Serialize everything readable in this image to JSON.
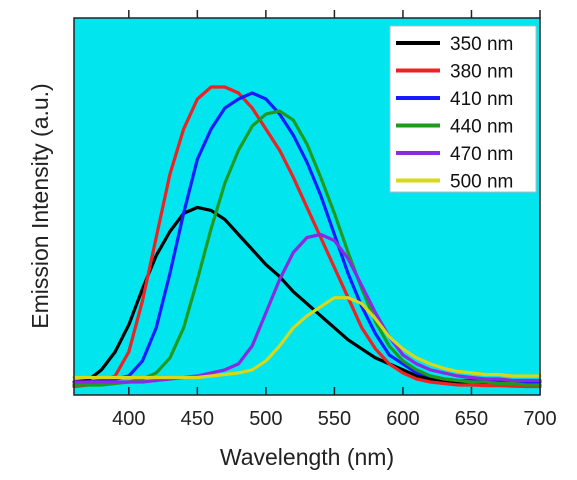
{
  "chart_data": {
    "type": "line",
    "title": "",
    "xlabel": "Wavelength (nm)",
    "ylabel": "Emission Intensity (a.u.)",
    "xlim": [
      360,
      700
    ],
    "ylim": [
      0,
      1
    ],
    "xticks": [
      400,
      450,
      500,
      550,
      600,
      650,
      700
    ],
    "grid": false,
    "legend_position": "top-right",
    "background_color": "#00e5ee",
    "x": [
      360,
      370,
      380,
      390,
      400,
      410,
      420,
      430,
      440,
      450,
      460,
      470,
      480,
      490,
      500,
      510,
      520,
      530,
      540,
      550,
      560,
      570,
      580,
      590,
      600,
      610,
      620,
      630,
      640,
      650,
      660,
      670,
      680,
      690,
      700
    ],
    "series": [
      {
        "name": "350 nm",
        "color": "#000000",
        "values": [
          0.02,
          0.025,
          0.06,
          0.12,
          0.21,
          0.33,
          0.44,
          0.52,
          0.58,
          0.6,
          0.59,
          0.56,
          0.51,
          0.46,
          0.41,
          0.37,
          0.32,
          0.28,
          0.24,
          0.2,
          0.16,
          0.13,
          0.1,
          0.08,
          0.06,
          0.04,
          0.03,
          0.025,
          0.02,
          0.02,
          0.015,
          0.015,
          0.012,
          0.01,
          0.01
        ]
      },
      {
        "name": "380 nm",
        "color": "#ee2222",
        "values": [
          0.005,
          0.01,
          0.02,
          0.04,
          0.12,
          0.29,
          0.5,
          0.71,
          0.86,
          0.96,
          1.0,
          1.0,
          0.98,
          0.93,
          0.86,
          0.79,
          0.7,
          0.6,
          0.5,
          0.4,
          0.3,
          0.2,
          0.13,
          0.08,
          0.05,
          0.03,
          0.02,
          0.015,
          0.01,
          0.01,
          0.008,
          0.008,
          0.006,
          0.005,
          0.005
        ]
      },
      {
        "name": "410 nm",
        "color": "#1a1aff",
        "values": [
          0.02,
          0.02,
          0.025,
          0.03,
          0.04,
          0.09,
          0.2,
          0.38,
          0.58,
          0.76,
          0.86,
          0.93,
          0.96,
          0.98,
          0.96,
          0.91,
          0.84,
          0.75,
          0.64,
          0.51,
          0.38,
          0.27,
          0.18,
          0.11,
          0.08,
          0.05,
          0.04,
          0.03,
          0.025,
          0.025,
          0.02,
          0.02,
          0.02,
          0.02,
          0.02
        ]
      },
      {
        "name": "440 nm",
        "color": "#1e9a1e",
        "values": [
          0.01,
          0.01,
          0.01,
          0.015,
          0.02,
          0.03,
          0.05,
          0.1,
          0.2,
          0.36,
          0.53,
          0.68,
          0.79,
          0.87,
          0.91,
          0.92,
          0.89,
          0.81,
          0.7,
          0.58,
          0.45,
          0.33,
          0.22,
          0.14,
          0.09,
          0.06,
          0.04,
          0.03,
          0.025,
          0.02,
          0.02,
          0.015,
          0.015,
          0.01,
          0.01
        ]
      },
      {
        "name": "470 nm",
        "color": "#8a2be2",
        "values": [
          0.02,
          0.02,
          0.02,
          0.02,
          0.02,
          0.02,
          0.025,
          0.03,
          0.035,
          0.04,
          0.05,
          0.06,
          0.08,
          0.14,
          0.25,
          0.36,
          0.45,
          0.5,
          0.51,
          0.49,
          0.43,
          0.34,
          0.25,
          0.17,
          0.11,
          0.08,
          0.06,
          0.05,
          0.04,
          0.035,
          0.03,
          0.03,
          0.025,
          0.025,
          0.025
        ]
      },
      {
        "name": "500 nm",
        "color": "#d8d81a",
        "values": [
          0.035,
          0.035,
          0.035,
          0.035,
          0.035,
          0.035,
          0.035,
          0.035,
          0.035,
          0.035,
          0.04,
          0.045,
          0.05,
          0.06,
          0.09,
          0.14,
          0.2,
          0.24,
          0.27,
          0.3,
          0.3,
          0.28,
          0.23,
          0.17,
          0.13,
          0.1,
          0.08,
          0.065,
          0.055,
          0.05,
          0.045,
          0.045,
          0.04,
          0.04,
          0.04
        ]
      }
    ]
  }
}
